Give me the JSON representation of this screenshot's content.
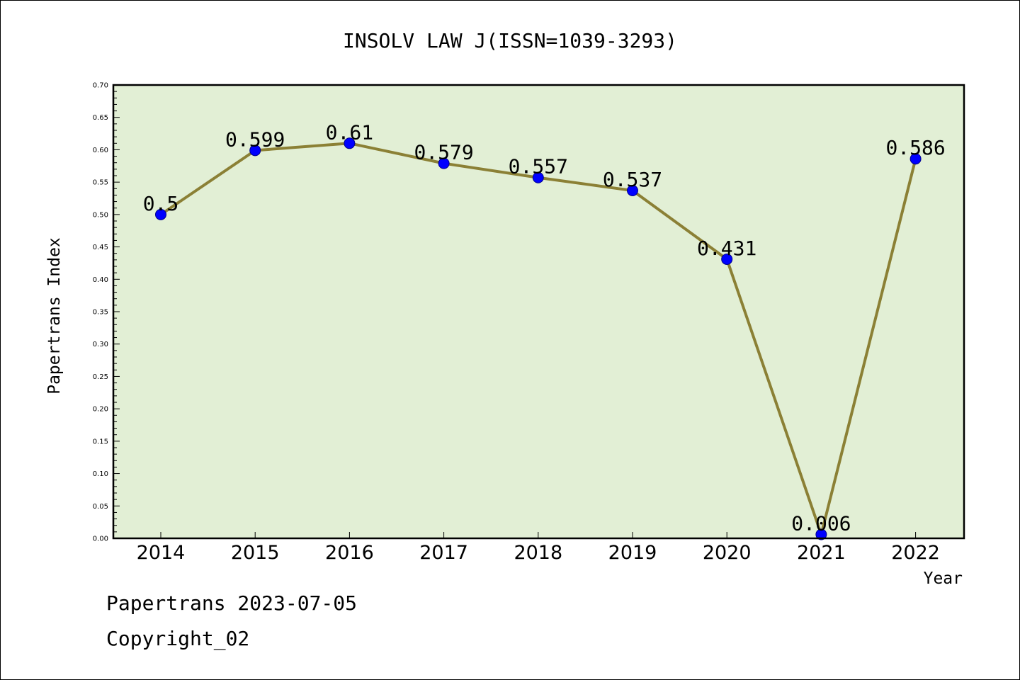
{
  "chart_data": {
    "type": "line",
    "title": "INSOLV LAW J(ISSN=1039-3293)",
    "xlabel": "Year",
    "ylabel": "Papertrans Index",
    "categories": [
      "2014",
      "2015",
      "2016",
      "2017",
      "2018",
      "2019",
      "2020",
      "2021",
      "2022"
    ],
    "values": [
      0.5,
      0.599,
      0.61,
      0.579,
      0.557,
      0.537,
      0.431,
      0.006,
      0.586
    ],
    "data_labels": [
      "0.5",
      "0.599",
      "0.61",
      "0.579",
      "0.557",
      "0.537",
      "0.431",
      "0.006",
      "0.586"
    ],
    "ylim": [
      0,
      0.7
    ],
    "ytick_labels": [
      "0.00",
      "0.05",
      "0.10",
      "0.15",
      "0.20",
      "0.25",
      "0.30",
      "0.35",
      "0.40",
      "0.45",
      "0.50",
      "0.55",
      "0.60",
      "0.65",
      "0.70"
    ],
    "grid": false,
    "colors": {
      "plot_background": "#e2efd5",
      "line": "#8b8035",
      "marker": "#0000ff"
    }
  },
  "footer": {
    "date_line": "Papertrans 2023-07-05",
    "copyright_line": "Copyright_02"
  }
}
